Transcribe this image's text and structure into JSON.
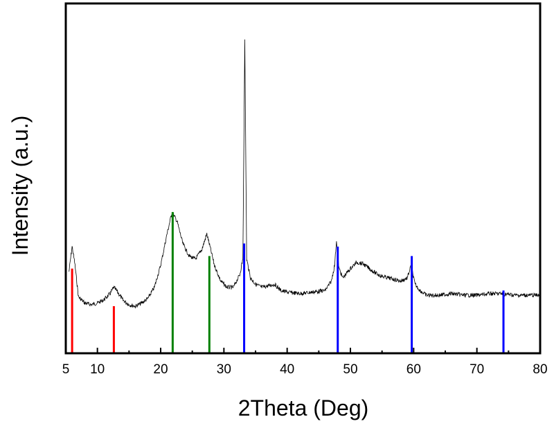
{
  "chart_data": {
    "type": "line",
    "title": "",
    "xlabel": "2Theta (Deg)",
    "ylabel": "Intensity (a.u.)",
    "xlim": [
      5,
      80
    ],
    "ylim": [
      0,
      100
    ],
    "x_ticks": [
      5,
      10,
      20,
      30,
      40,
      50,
      60,
      70,
      80
    ],
    "y_ticks": [],
    "grid": false,
    "legend": "none",
    "series": [
      {
        "color": "#000000",
        "x": [
          5.5,
          6.0,
          6.4,
          7,
          8,
          9,
          10,
          11,
          12,
          12.6,
          13.2,
          14,
          15,
          16,
          17,
          18,
          19,
          20,
          21,
          21.8,
          22.6,
          23.5,
          24.5,
          25.5,
          26.5,
          27.3,
          27.8,
          28.5,
          29.5,
          30.5,
          31.5,
          32.5,
          33.0,
          33.3,
          33.6,
          34.2,
          35,
          36,
          37,
          38,
          39,
          40,
          42,
          44,
          46,
          47,
          47.5,
          47.8,
          48.2,
          48.8,
          50,
          51,
          52,
          53,
          54,
          55,
          56,
          57,
          58,
          59,
          59.6,
          60.2,
          61,
          62,
          64,
          66,
          68,
          70,
          72,
          74,
          76,
          78,
          80
        ],
        "y": [
          26,
          34,
          29,
          18,
          16,
          15.5,
          16,
          17,
          19,
          21,
          19.5,
          17,
          15.5,
          15,
          16,
          17.5,
          21,
          28,
          38,
          45,
          42,
          35,
          31,
          30,
          33,
          38,
          34,
          28,
          23,
          21,
          21,
          25,
          30,
          100,
          30,
          24,
          22,
          21,
          21.5,
          22,
          20,
          19.5,
          19,
          19.5,
          20,
          23,
          28,
          36,
          27,
          24,
          27,
          29,
          28.5,
          27,
          25.5,
          24.5,
          24,
          23.5,
          23,
          24,
          28,
          22,
          20,
          18.5,
          18.5,
          19,
          18.5,
          18.5,
          19,
          19,
          18.5,
          18.5,
          18.5
        ]
      }
    ],
    "reference_lines": [
      {
        "color": "#ff0000",
        "x": [
          6.0,
          12.6
        ],
        "height": [
          27,
          15
        ]
      },
      {
        "color": "#008000",
        "x": [
          21.9,
          27.7
        ],
        "height": [
          45,
          31
        ]
      },
      {
        "color": "#0000ff",
        "x": [
          33.2,
          48.0,
          59.7,
          74.2
        ],
        "height": [
          35,
          34,
          31,
          20
        ]
      }
    ]
  }
}
